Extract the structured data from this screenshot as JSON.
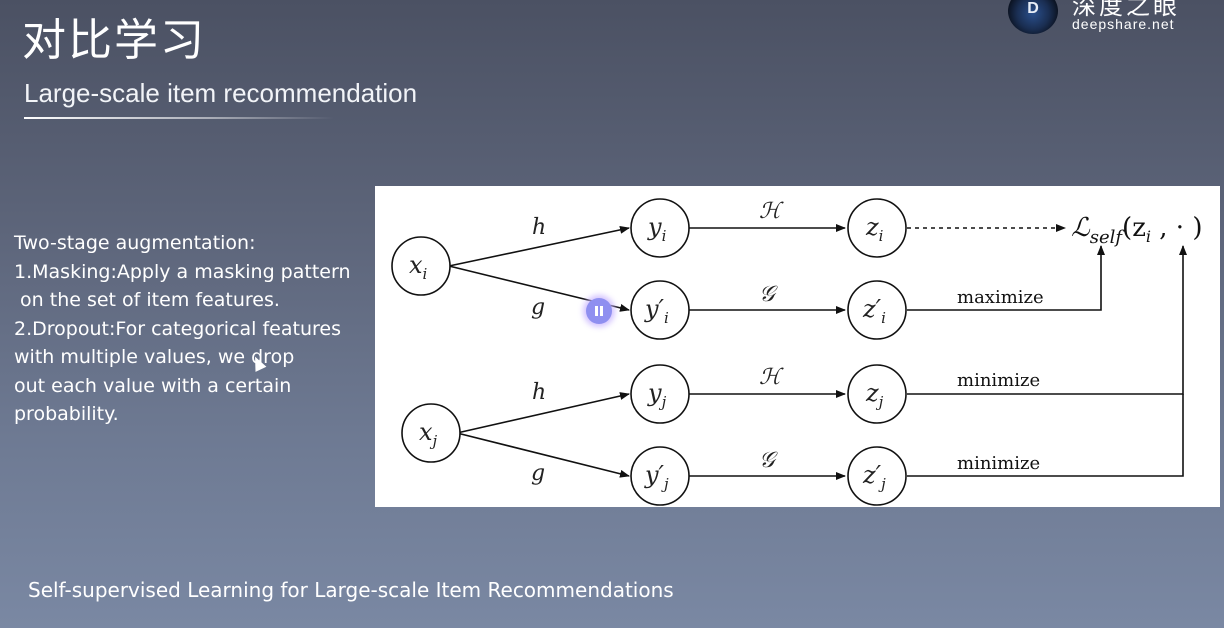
{
  "slide": {
    "title": "对比学习",
    "subtitle": "Large-scale item recommendation",
    "footer": "Self-supervised Learning for Large-scale Item Recommendations"
  },
  "logo": {
    "name_cn": "深度之眼",
    "site": "deepshare.net"
  },
  "notes": {
    "lines": [
      "Two-stage augmentation:",
      "1.Masking:Apply a masking pattern",
      " on the set of item features.",
      "2.Dropout:For categorical features",
      "with multiple values, we drop",
      "out each value with a certain",
      "probability."
    ]
  },
  "diagram": {
    "nodes": {
      "xi": "x",
      "xi_sub": "i",
      "xj": "x",
      "xj_sub": "j",
      "yi": "y",
      "yi_sub": "i",
      "yi_prime": "y′",
      "yi_prime_sub": "i",
      "yj": "y",
      "yj_sub": "j",
      "yj_prime": "y′",
      "yj_prime_sub": "j",
      "zi": "z",
      "zi_sub": "i",
      "zi_prime": "z′",
      "zi_prime_sub": "i",
      "zj": "z",
      "zj_sub": "j",
      "zj_prime": "z′",
      "zj_prime_sub": "j"
    },
    "edges": {
      "h": "h",
      "g": "g",
      "H": "ℋ",
      "G": "𝒢"
    },
    "loss": {
      "symbol": "ℒ",
      "sub": "self",
      "args": "(z",
      "args_sub": "i",
      "args_tail": " , · )"
    },
    "labels": {
      "maximize": "maximize",
      "minimize_1": "minimize",
      "minimize_2": "minimize"
    }
  }
}
